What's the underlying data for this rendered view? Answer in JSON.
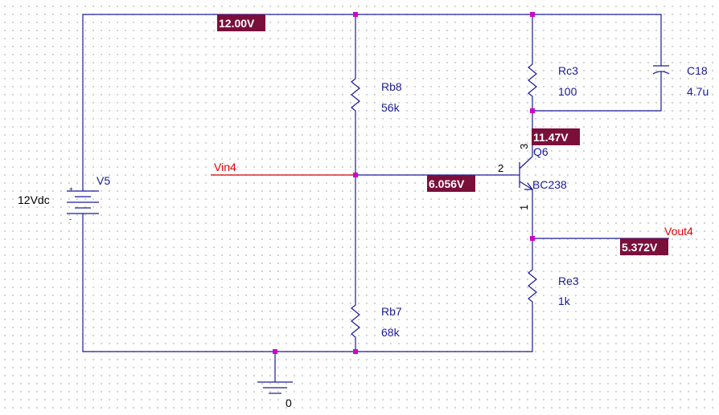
{
  "components": {
    "source": {
      "ref": "V5",
      "value": "12Vdc",
      "plus": "+",
      "minus": "-"
    },
    "rb8": {
      "ref": "Rb8",
      "value": "56k"
    },
    "rb7": {
      "ref": "Rb7",
      "value": "68k"
    },
    "rc3": {
      "ref": "Rc3",
      "value": "100"
    },
    "re3": {
      "ref": "Re3",
      "value": "1k"
    },
    "c18": {
      "ref": "C18",
      "value": "4.7u"
    },
    "q6": {
      "ref": "Q6",
      "model": "BC238",
      "pin_collector": "3",
      "pin_base": "2",
      "pin_emitter": "1"
    },
    "ground": {
      "label": "0"
    }
  },
  "nets": {
    "vin": "Vin4",
    "vout": "Vout4"
  },
  "voltages": {
    "top_rail": "12.00V",
    "collector": "11.47V",
    "base": "6.056V",
    "emitter": "5.372V"
  },
  "colors": {
    "wire": "#1a1a9a",
    "net_label": "#e00000",
    "junction": "#d000d0",
    "voltage_marker": "#7a0f3a"
  }
}
